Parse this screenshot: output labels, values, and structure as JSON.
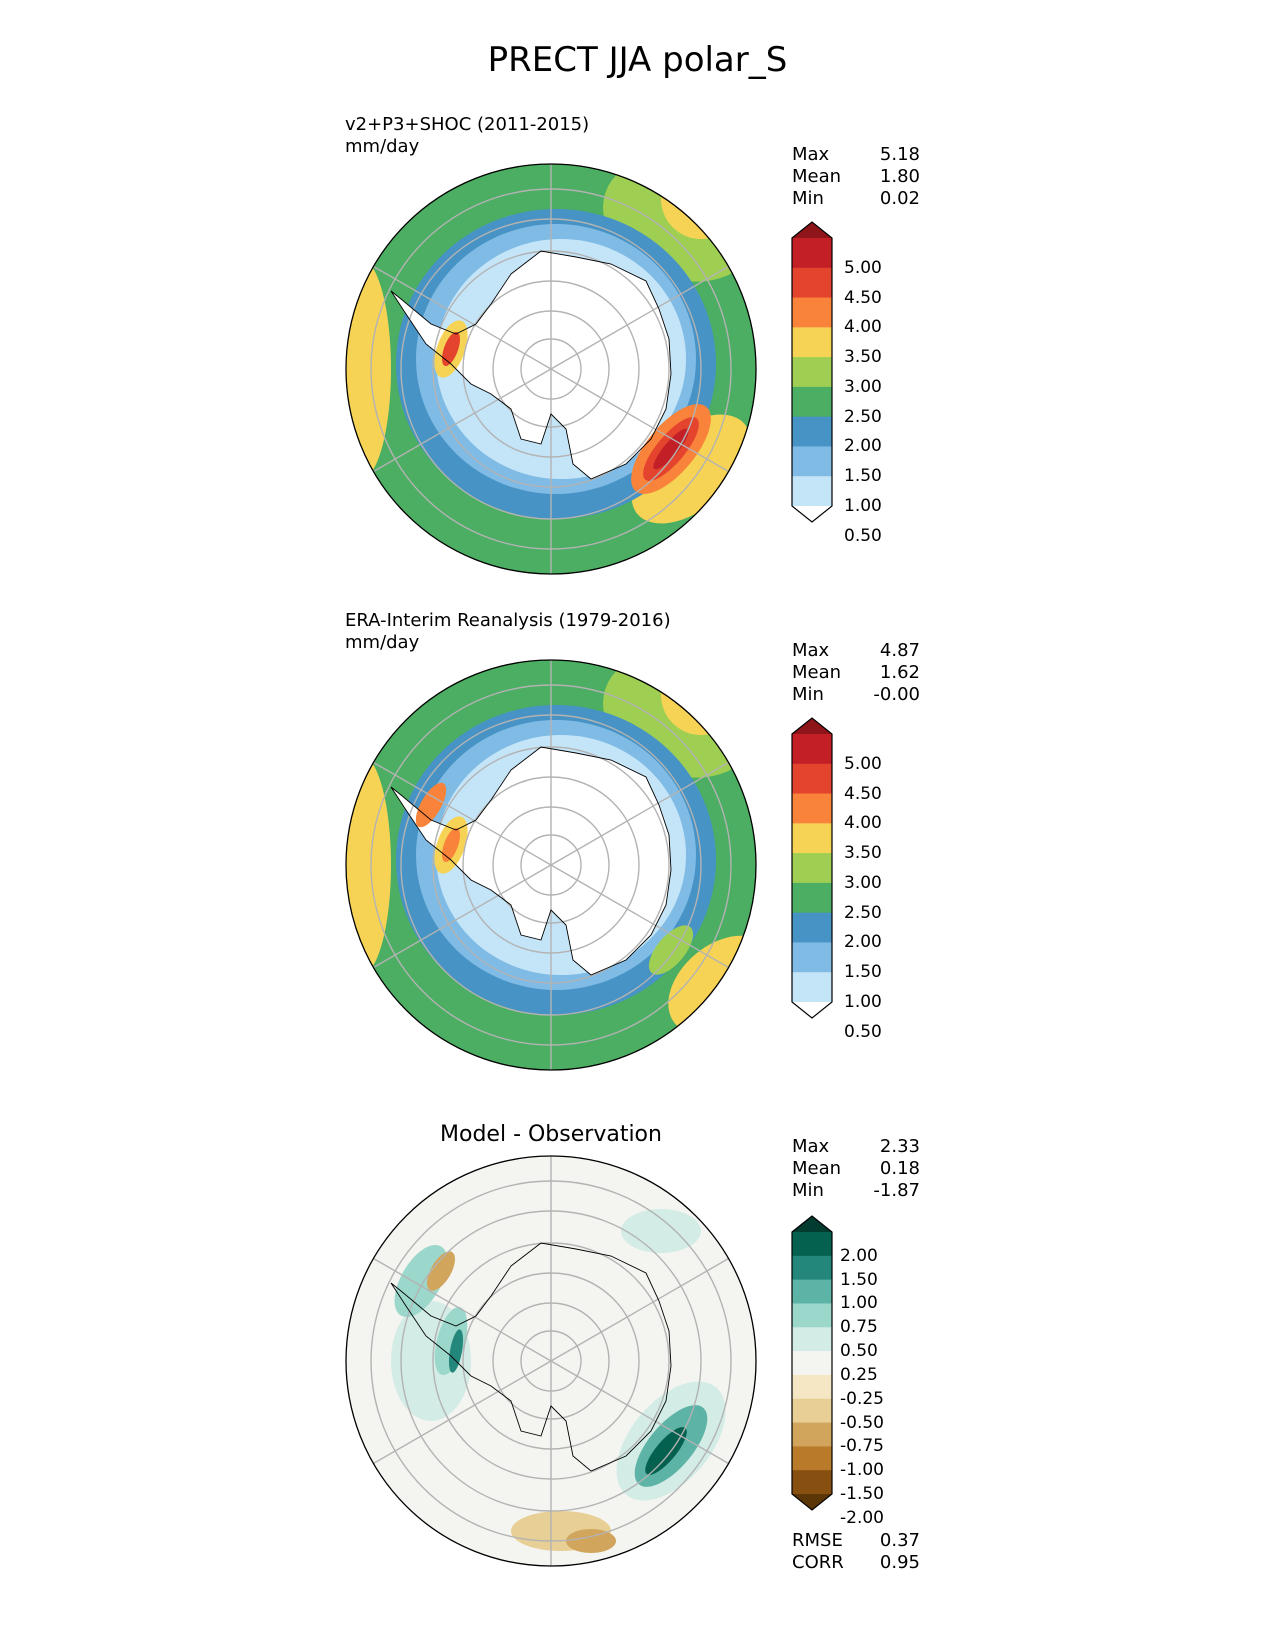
{
  "figure": {
    "title": "PRECT JJA polar_S"
  },
  "panels": [
    {
      "id": "model",
      "title_line1": "v2+P3+SHOC (2011-2015)",
      "title_line2": "mm/day",
      "center_title": "",
      "stats": [
        {
          "label": "Max",
          "value": "5.18"
        },
        {
          "label": "Mean",
          "value": "1.80"
        },
        {
          "label": "Min",
          "value": "0.02"
        }
      ],
      "colorbar": {
        "ticks": [
          "5.00",
          "4.50",
          "4.00",
          "3.50",
          "3.00",
          "2.50",
          "2.00",
          "1.50",
          "1.00",
          "0.50"
        ],
        "colors": [
          "#ffffff",
          "#c4e5f8",
          "#7fbbe4",
          "#4793c5",
          "#4cae62",
          "#9fcf52",
          "#f7d355",
          "#f9833a",
          "#e4432d",
          "#c21f27",
          "#8e1519"
        ]
      }
    },
    {
      "id": "obs",
      "title_line1": "ERA-Interim Reanalysis (1979-2016)",
      "title_line2": "mm/day",
      "center_title": "",
      "stats": [
        {
          "label": "Max",
          "value": "4.87"
        },
        {
          "label": "Mean",
          "value": "1.62"
        },
        {
          "label": "Min",
          "value": "-0.00"
        }
      ],
      "colorbar": {
        "ticks": [
          "5.00",
          "4.50",
          "4.00",
          "3.50",
          "3.00",
          "2.50",
          "2.00",
          "1.50",
          "1.00",
          "0.50"
        ],
        "colors": [
          "#ffffff",
          "#c4e5f8",
          "#7fbbe4",
          "#4793c5",
          "#4cae62",
          "#9fcf52",
          "#f7d355",
          "#f9833a",
          "#e4432d",
          "#c21f27",
          "#8e1519"
        ]
      }
    },
    {
      "id": "diff",
      "title_line1": "",
      "title_line2": "",
      "center_title": "Model - Observation",
      "stats": [
        {
          "label": "Max",
          "value": "2.33"
        },
        {
          "label": "Mean",
          "value": "0.18"
        },
        {
          "label": "Min",
          "value": "-1.87"
        }
      ],
      "extra_stats": [
        {
          "label": "RMSE",
          "value": "0.37"
        },
        {
          "label": "CORR",
          "value": "0.95"
        }
      ],
      "colorbar": {
        "ticks": [
          "2.00",
          "1.50",
          "1.00",
          "0.75",
          "0.50",
          "0.25",
          "-0.25",
          "-0.50",
          "-0.75",
          "-1.00",
          "-1.50",
          "-2.00"
        ],
        "colors": [
          "#5b3708",
          "#875010",
          "#b97b2a",
          "#d1a65c",
          "#e8cf96",
          "#f5e6c4",
          "#f4f4f1",
          "#d3ece6",
          "#9cd7cb",
          "#5db3a5",
          "#24877b",
          "#04604f",
          "#033b30"
        ]
      }
    }
  ]
}
